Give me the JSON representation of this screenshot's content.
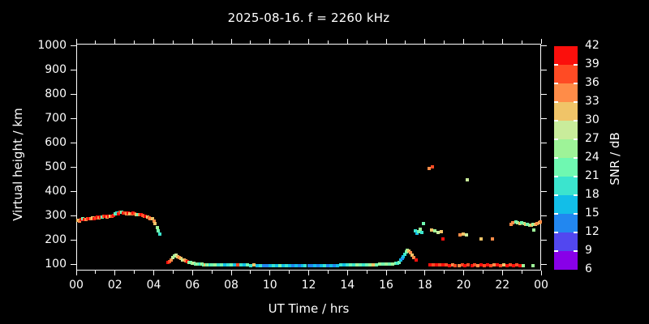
{
  "title": "2025-08-16. f = 2260 kHz",
  "axes": {
    "x": {
      "label": "UT Time / hrs",
      "tick_labels": [
        "00",
        "02",
        "04",
        "06",
        "08",
        "10",
        "12",
        "14",
        "16",
        "18",
        "20",
        "22",
        "00"
      ],
      "tick_hours": [
        0,
        2,
        4,
        6,
        8,
        10,
        12,
        14,
        16,
        18,
        20,
        22,
        24
      ],
      "minor_tick_every_hours": 1,
      "range_hours": [
        0,
        24
      ]
    },
    "y": {
      "label": "Virtual height / km",
      "tick_labels": [
        "100",
        "200",
        "300",
        "400",
        "500",
        "600",
        "700",
        "800",
        "900",
        "1000"
      ],
      "tick_values": [
        100,
        200,
        300,
        400,
        500,
        600,
        700,
        800,
        900,
        1000
      ],
      "range_km": [
        75,
        1010
      ]
    }
  },
  "colorbar": {
    "label": "SNR / dB",
    "tick_labels_top_to_bottom": [
      "42",
      "39",
      "36",
      "33",
      "30",
      "27",
      "24",
      "21",
      "18",
      "15",
      "12",
      "9",
      "6"
    ],
    "levels_db": [
      6,
      9,
      12,
      15,
      18,
      21,
      24,
      27,
      30,
      33,
      36,
      39,
      42
    ],
    "colors_bottom_to_top": [
      "#8800e8",
      "#5247f0",
      "#2287f0",
      "#12bee8",
      "#3be4ce",
      "#6ff8b1",
      "#9ef398",
      "#c9ec9b",
      "#f0c468",
      "#ff8c48",
      "#ff4b24",
      "#fb0f0c"
    ]
  },
  "chart_data": {
    "type": "scatter",
    "title": "2025-08-16. f = 2260 kHz",
    "xlabel": "UT Time / hrs",
    "ylabel": "Virtual height / km",
    "color_axis_label": "SNR / dB",
    "xlim": [
      0,
      24
    ],
    "ylim": [
      75,
      1010
    ],
    "color_lim": [
      6,
      42
    ],
    "background": "#000000",
    "point_format": "[ut_hours, virtual_height_km, snr_db]",
    "points": [
      [
        0.08,
        283,
        31
      ],
      [
        0.17,
        280,
        34
      ],
      [
        0.25,
        285,
        40
      ],
      [
        0.33,
        288,
        22
      ],
      [
        0.42,
        287,
        40
      ],
      [
        0.5,
        285,
        34
      ],
      [
        0.58,
        290,
        37
      ],
      [
        0.67,
        288,
        40
      ],
      [
        0.75,
        290,
        34
      ],
      [
        0.83,
        292,
        31
      ],
      [
        0.92,
        290,
        40
      ],
      [
        1.0,
        293,
        37
      ],
      [
        1.08,
        295,
        40
      ],
      [
        1.17,
        293,
        34
      ],
      [
        1.25,
        297,
        40
      ],
      [
        1.33,
        295,
        22
      ],
      [
        1.42,
        298,
        37
      ],
      [
        1.5,
        300,
        40
      ],
      [
        1.58,
        297,
        34
      ],
      [
        1.67,
        300,
        40
      ],
      [
        1.75,
        298,
        31
      ],
      [
        1.83,
        300,
        37
      ],
      [
        1.92,
        303,
        40
      ],
      [
        2.0,
        308,
        22
      ],
      [
        2.08,
        313,
        19
      ],
      [
        2.17,
        310,
        40
      ],
      [
        2.25,
        315,
        37
      ],
      [
        2.33,
        317,
        22
      ],
      [
        2.42,
        313,
        40
      ],
      [
        2.5,
        312,
        37
      ],
      [
        2.58,
        310,
        34
      ],
      [
        2.67,
        312,
        40
      ],
      [
        2.75,
        308,
        31
      ],
      [
        2.83,
        310,
        34
      ],
      [
        2.92,
        312,
        40
      ],
      [
        3.0,
        308,
        37
      ],
      [
        3.08,
        307,
        31
      ],
      [
        3.17,
        305,
        22
      ],
      [
        3.25,
        307,
        34
      ],
      [
        3.33,
        305,
        40
      ],
      [
        3.42,
        303,
        37
      ],
      [
        3.5,
        300,
        34
      ],
      [
        3.58,
        300,
        40
      ],
      [
        3.67,
        297,
        31
      ],
      [
        3.75,
        293,
        37
      ],
      [
        3.83,
        290,
        34
      ],
      [
        3.92,
        288,
        31
      ],
      [
        4.0,
        280,
        34
      ],
      [
        4.08,
        268,
        31
      ],
      [
        4.17,
        252,
        25
      ],
      [
        4.25,
        238,
        22
      ],
      [
        4.33,
        225,
        19
      ],
      [
        4.75,
        107,
        40
      ],
      [
        4.83,
        112,
        37
      ],
      [
        4.92,
        120,
        34
      ],
      [
        5.0,
        128,
        28
      ],
      [
        5.08,
        135,
        25
      ],
      [
        5.17,
        138,
        28
      ],
      [
        5.25,
        132,
        31
      ],
      [
        5.33,
        128,
        34
      ],
      [
        5.42,
        124,
        31
      ],
      [
        5.5,
        120,
        28
      ],
      [
        5.58,
        117,
        31
      ],
      [
        5.67,
        114,
        34
      ],
      [
        5.75,
        111,
        40
      ],
      [
        5.83,
        109,
        25
      ],
      [
        5.92,
        107,
        22
      ],
      [
        6.0,
        105,
        25
      ],
      [
        6.08,
        104,
        28
      ],
      [
        6.17,
        103,
        22
      ],
      [
        6.25,
        102,
        25
      ],
      [
        6.33,
        102,
        22
      ],
      [
        6.42,
        101,
        19
      ],
      [
        6.5,
        101,
        25
      ],
      [
        6.58,
        100,
        22
      ],
      [
        6.67,
        100,
        31
      ],
      [
        6.75,
        100,
        22
      ],
      [
        6.83,
        99,
        25
      ],
      [
        6.92,
        100,
        19
      ],
      [
        7.0,
        99,
        22
      ],
      [
        7.17,
        99,
        25
      ],
      [
        7.33,
        98,
        19
      ],
      [
        7.5,
        98,
        22
      ],
      [
        7.67,
        98,
        16
      ],
      [
        7.83,
        98,
        19
      ],
      [
        8.0,
        97,
        22
      ],
      [
        8.17,
        98,
        16
      ],
      [
        8.33,
        97,
        37
      ],
      [
        8.5,
        97,
        19
      ],
      [
        8.67,
        97,
        16
      ],
      [
        8.83,
        97,
        22
      ],
      [
        9.0,
        96,
        19
      ],
      [
        9.17,
        97,
        31
      ],
      [
        9.33,
        96,
        16
      ],
      [
        9.5,
        96,
        19
      ],
      [
        9.67,
        96,
        13
      ],
      [
        9.83,
        96,
        13
      ],
      [
        10.0,
        96,
        16
      ],
      [
        10.17,
        95,
        19
      ],
      [
        10.33,
        96,
        16
      ],
      [
        10.5,
        95,
        22
      ],
      [
        10.67,
        95,
        16
      ],
      [
        10.83,
        95,
        19
      ],
      [
        11.0,
        95,
        16
      ],
      [
        11.17,
        95,
        13
      ],
      [
        11.33,
        95,
        16
      ],
      [
        11.5,
        95,
        13
      ],
      [
        11.67,
        95,
        16
      ],
      [
        11.83,
        95,
        19
      ],
      [
        12.0,
        95,
        13
      ],
      [
        12.17,
        95,
        13
      ],
      [
        12.33,
        95,
        16
      ],
      [
        12.5,
        95,
        13
      ],
      [
        12.67,
        96,
        16
      ],
      [
        12.83,
        96,
        19
      ],
      [
        13.0,
        96,
        13
      ],
      [
        13.17,
        96,
        16
      ],
      [
        13.33,
        96,
        13
      ],
      [
        13.5,
        96,
        16
      ],
      [
        13.67,
        97,
        19
      ],
      [
        13.83,
        97,
        16
      ],
      [
        14.0,
        97,
        19
      ],
      [
        14.17,
        98,
        22
      ],
      [
        14.33,
        98,
        19
      ],
      [
        14.5,
        98,
        25
      ],
      [
        14.67,
        99,
        22
      ],
      [
        14.83,
        99,
        19
      ],
      [
        15.0,
        99,
        22
      ],
      [
        15.17,
        100,
        25
      ],
      [
        15.33,
        100,
        31
      ],
      [
        15.5,
        100,
        22
      ],
      [
        15.67,
        101,
        25
      ],
      [
        15.83,
        101,
        22
      ],
      [
        16.0,
        102,
        25
      ],
      [
        16.17,
        102,
        22
      ],
      [
        16.33,
        103,
        25
      ],
      [
        16.5,
        104,
        22
      ],
      [
        16.58,
        106,
        19
      ],
      [
        16.67,
        110,
        22
      ],
      [
        16.75,
        117,
        16
      ],
      [
        16.83,
        125,
        13
      ],
      [
        16.9,
        133,
        16
      ],
      [
        16.97,
        142,
        19
      ],
      [
        17.03,
        152,
        22
      ],
      [
        17.1,
        160,
        25
      ],
      [
        17.17,
        155,
        31
      ],
      [
        17.25,
        148,
        34
      ],
      [
        17.33,
        140,
        31
      ],
      [
        17.42,
        130,
        34
      ],
      [
        17.57,
        117,
        40
      ],
      [
        18.25,
        99,
        40
      ],
      [
        18.42,
        98,
        37
      ],
      [
        18.58,
        98,
        40
      ],
      [
        18.75,
        97,
        37
      ],
      [
        18.92,
        97,
        40
      ],
      [
        19.08,
        97,
        37
      ],
      [
        19.25,
        96,
        40
      ],
      [
        19.42,
        97,
        34
      ],
      [
        19.58,
        96,
        37
      ],
      [
        19.75,
        96,
        34
      ],
      [
        19.92,
        97,
        37
      ],
      [
        20.08,
        96,
        40
      ],
      [
        20.25,
        97,
        37
      ],
      [
        20.42,
        96,
        40
      ],
      [
        20.58,
        97,
        37
      ],
      [
        20.75,
        96,
        34
      ],
      [
        20.92,
        97,
        40
      ],
      [
        21.08,
        96,
        37
      ],
      [
        21.25,
        97,
        40
      ],
      [
        21.42,
        96,
        37
      ],
      [
        21.58,
        97,
        34
      ],
      [
        21.75,
        97,
        40
      ],
      [
        21.92,
        96,
        37
      ],
      [
        22.08,
        97,
        31
      ],
      [
        22.25,
        96,
        40
      ],
      [
        22.42,
        97,
        37
      ],
      [
        22.58,
        96,
        40
      ],
      [
        22.75,
        97,
        37
      ],
      [
        22.92,
        95,
        40
      ],
      [
        23.08,
        96,
        25
      ],
      [
        23.58,
        96,
        25
      ],
      [
        18.2,
        495,
        34
      ],
      [
        18.4,
        503,
        37
      ],
      [
        20.2,
        448,
        28
      ],
      [
        17.92,
        268,
        22
      ],
      [
        17.5,
        240,
        19
      ],
      [
        17.58,
        228,
        16
      ],
      [
        17.67,
        235,
        22
      ],
      [
        17.75,
        245,
        25
      ],
      [
        17.83,
        232,
        19
      ],
      [
        18.33,
        242,
        31
      ],
      [
        18.5,
        238,
        25
      ],
      [
        18.67,
        232,
        28
      ],
      [
        18.83,
        235,
        31
      ],
      [
        18.92,
        205,
        40
      ],
      [
        19.83,
        222,
        34
      ],
      [
        19.97,
        225,
        31
      ],
      [
        20.13,
        222,
        28
      ],
      [
        20.92,
        204,
        31
      ],
      [
        21.5,
        205,
        34
      ],
      [
        23.63,
        243,
        25
      ],
      [
        22.45,
        265,
        34
      ],
      [
        22.55,
        272,
        34
      ],
      [
        22.7,
        277,
        22
      ],
      [
        22.8,
        273,
        25
      ],
      [
        22.9,
        270,
        31
      ],
      [
        23.0,
        272,
        22
      ],
      [
        23.1,
        268,
        25
      ],
      [
        23.2,
        266,
        31
      ],
      [
        23.3,
        264,
        22
      ],
      [
        23.4,
        262,
        25
      ],
      [
        23.5,
        263,
        31
      ],
      [
        23.6,
        265,
        25
      ],
      [
        23.7,
        267,
        31
      ],
      [
        23.8,
        270,
        34
      ],
      [
        23.9,
        273,
        31
      ],
      [
        23.97,
        276,
        34
      ]
    ]
  }
}
